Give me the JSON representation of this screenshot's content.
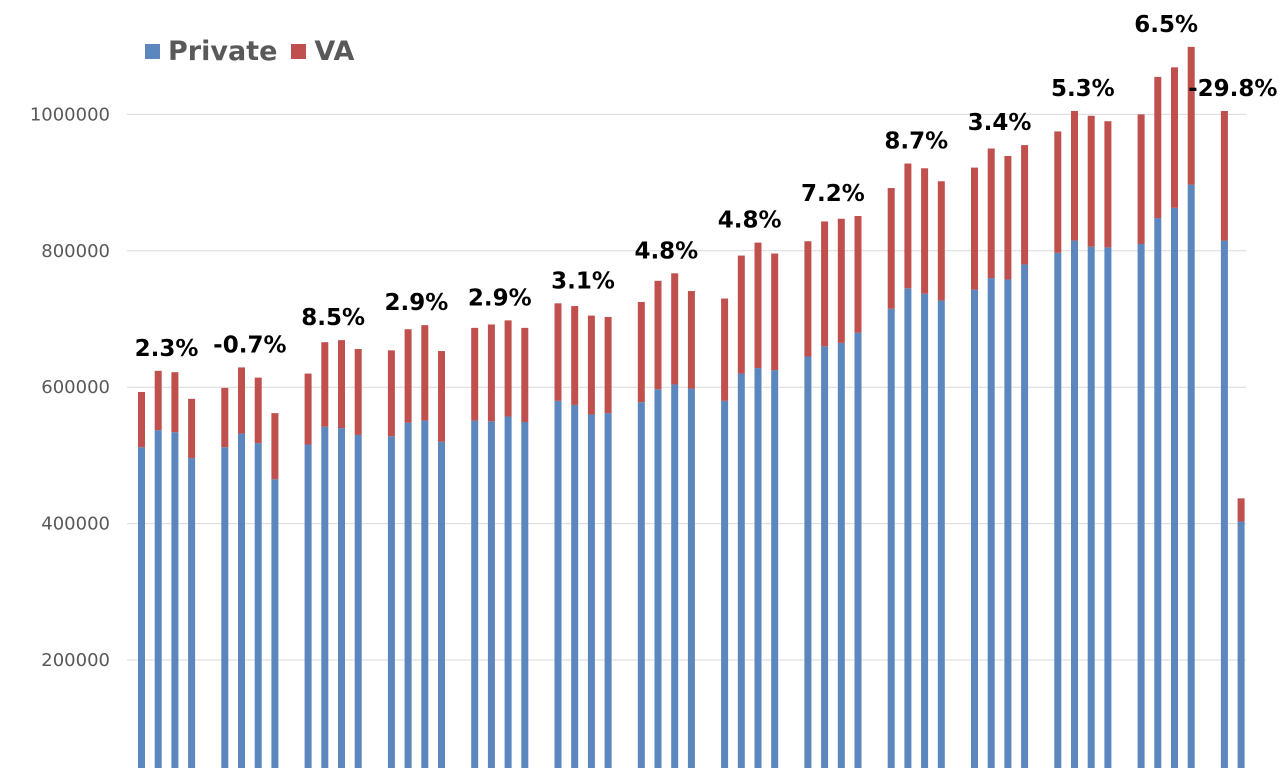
{
  "chart_data": {
    "type": "bar",
    "stacked": true,
    "ylim": [
      90000,
      1115000
    ],
    "yticks": [
      200000,
      400000,
      600000,
      800000,
      1000000
    ],
    "ytick_labels": [
      "200000",
      "400000",
      "600000",
      "800000",
      "1000000"
    ],
    "grid": true,
    "legend_position": "top-left",
    "series": [
      {
        "name": "Private",
        "color": "#5b87be",
        "values": [
          512000,
          537000,
          534000,
          496000,
          512000,
          532000,
          518000,
          465000,
          516000,
          542000,
          540000,
          530000,
          528000,
          548000,
          551000,
          520000,
          551000,
          550000,
          557000,
          549000,
          580000,
          574000,
          560000,
          562000,
          578000,
          597000,
          604000,
          598000,
          580000,
          620000,
          628000,
          625000,
          645000,
          660000,
          665000,
          680000,
          715000,
          745000,
          737000,
          727000,
          743000,
          760000,
          758000,
          780000,
          797000,
          815000,
          806000,
          805000,
          810000,
          848000,
          863000,
          897000,
          815000,
          403000
        ]
      },
      {
        "name": "VA",
        "color": "#c0504d",
        "values": [
          81000,
          87000,
          88000,
          87000,
          87000,
          97000,
          96000,
          97000,
          104000,
          124000,
          129000,
          126000,
          126000,
          137000,
          140000,
          133000,
          136000,
          142000,
          141000,
          138000,
          143000,
          145000,
          145000,
          141000,
          147000,
          159000,
          163000,
          143000,
          150000,
          173000,
          184000,
          171000,
          169000,
          183000,
          182000,
          171000,
          177000,
          183000,
          184000,
          175000,
          179000,
          190000,
          181000,
          175000,
          178000,
          190000,
          192000,
          185000,
          190000,
          207000,
          206000,
          202000,
          190000,
          34000
        ]
      }
    ],
    "annotations": [
      "2.3%",
      "-0.7%",
      "8.5%",
      "2.9%",
      "2.9%",
      "3.1%",
      "4.8%",
      "4.8%",
      "7.2%",
      "8.7%",
      "3.4%",
      "5.3%",
      "6.5%",
      "-29.8%"
    ]
  }
}
